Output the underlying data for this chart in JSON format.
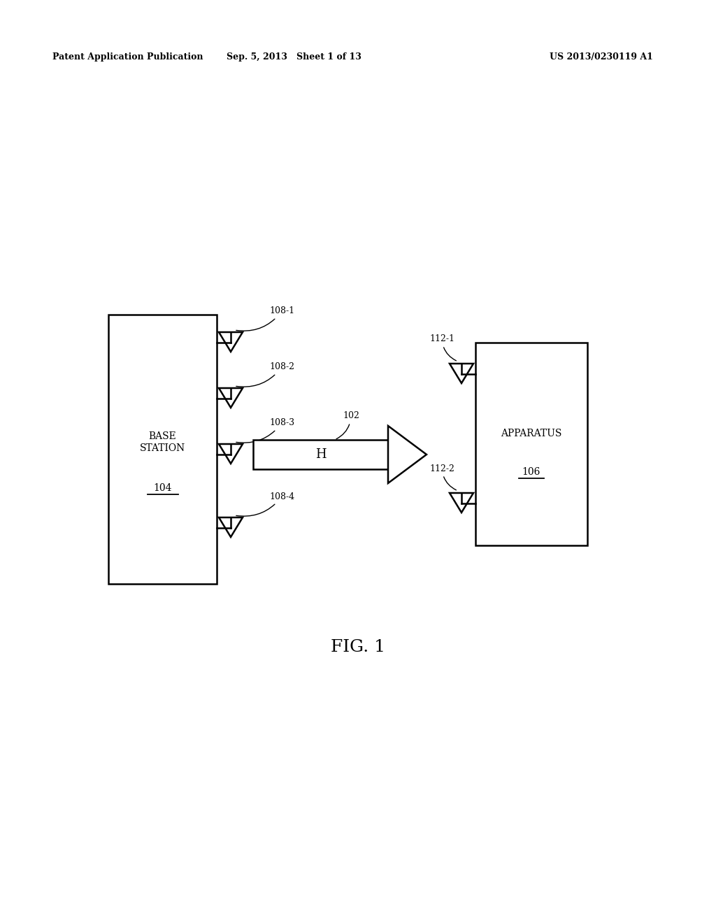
{
  "bg_color": "#ffffff",
  "header_left": "Patent Application Publication",
  "header_mid": "Sep. 5, 2013   Sheet 1 of 13",
  "header_right": "US 2013/0230119 A1",
  "fig_label": "FIG. 1",
  "base_station_label": "BASE\nSTATION",
  "base_station_ref": "104",
  "apparatus_label": "APPARATUS",
  "apparatus_ref": "106",
  "channel_label": "H",
  "channel_ref": "102",
  "tx_antennas": [
    "108-1",
    "108-2",
    "108-3",
    "108-4"
  ],
  "rx_antennas": [
    "112-1",
    "112-2"
  ],
  "line_color": "#000000",
  "header_fontsize": 9,
  "label_fontsize": 10,
  "ref_fontsize": 9,
  "fig_fontsize": 18
}
